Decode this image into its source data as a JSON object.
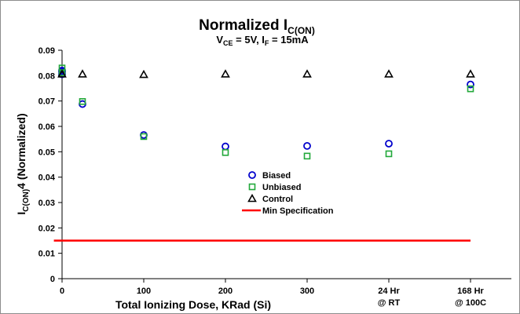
{
  "chart_data": {
    "type": "scatter",
    "title_main": "Normalized I",
    "title_sub": "C(ON)",
    "subtitle": {
      "v": "V",
      "v_sub": "CE",
      "v_rest": " = 5V, I",
      "i_sub": "F",
      "i_rest": " = 15mA"
    },
    "ylabel": {
      "pre": "I",
      "sub": "C(ON)",
      "post": "4 (Normalized)"
    },
    "xlabel": "Total Ionizing Dose, KRad (Si)",
    "x_categories": [
      {
        "x": 0,
        "lines": [
          "0"
        ]
      },
      {
        "x": 100,
        "lines": [
          "100"
        ]
      },
      {
        "x": 200,
        "lines": [
          "200"
        ]
      },
      {
        "x": 300,
        "lines": [
          "300"
        ]
      },
      {
        "x": 400,
        "lines": [
          "24 Hr",
          "@ RT"
        ]
      },
      {
        "x": 500,
        "lines": [
          "168 Hr",
          "@ 100C"
        ]
      }
    ],
    "y_ticks": [
      "0",
      "0.01",
      "0.02",
      "0.03",
      "0.04",
      "0.05",
      "0.06",
      "0.07",
      "0.08",
      "0.09"
    ],
    "xlim": [
      0,
      550
    ],
    "ylim": [
      0,
      0.09
    ],
    "series": [
      {
        "name": "Biased",
        "marker": "circle",
        "color": "#0000cc",
        "points": [
          [
            0,
            0.0805
          ],
          [
            0,
            0.0815
          ],
          [
            0,
            0.082
          ],
          [
            25,
            0.0688
          ],
          [
            100,
            0.0566
          ],
          [
            200,
            0.0521
          ],
          [
            300,
            0.0523
          ],
          [
            400,
            0.0532
          ],
          [
            500,
            0.0765
          ]
        ]
      },
      {
        "name": "Unbiased",
        "marker": "square",
        "color": "#22a83a",
        "points": [
          [
            0,
            0.083
          ],
          [
            0,
            0.0812
          ],
          [
            25,
            0.0698
          ],
          [
            100,
            0.056
          ],
          [
            200,
            0.0497
          ],
          [
            300,
            0.0483
          ],
          [
            400,
            0.0492
          ],
          [
            500,
            0.0748
          ]
        ]
      },
      {
        "name": "Control",
        "marker": "triangle",
        "color": "#000000",
        "points": [
          [
            0,
            0.0806
          ],
          [
            25,
            0.0806
          ],
          [
            100,
            0.0804
          ],
          [
            200,
            0.0806
          ],
          [
            300,
            0.0806
          ],
          [
            400,
            0.0806
          ],
          [
            500,
            0.0806
          ]
        ]
      }
    ],
    "reference_line": {
      "name": "Min Specification",
      "y": 0.015,
      "x_start": -10,
      "x_end": 500,
      "color": "#ff0000"
    },
    "legend_position": "center",
    "grid": false
  }
}
